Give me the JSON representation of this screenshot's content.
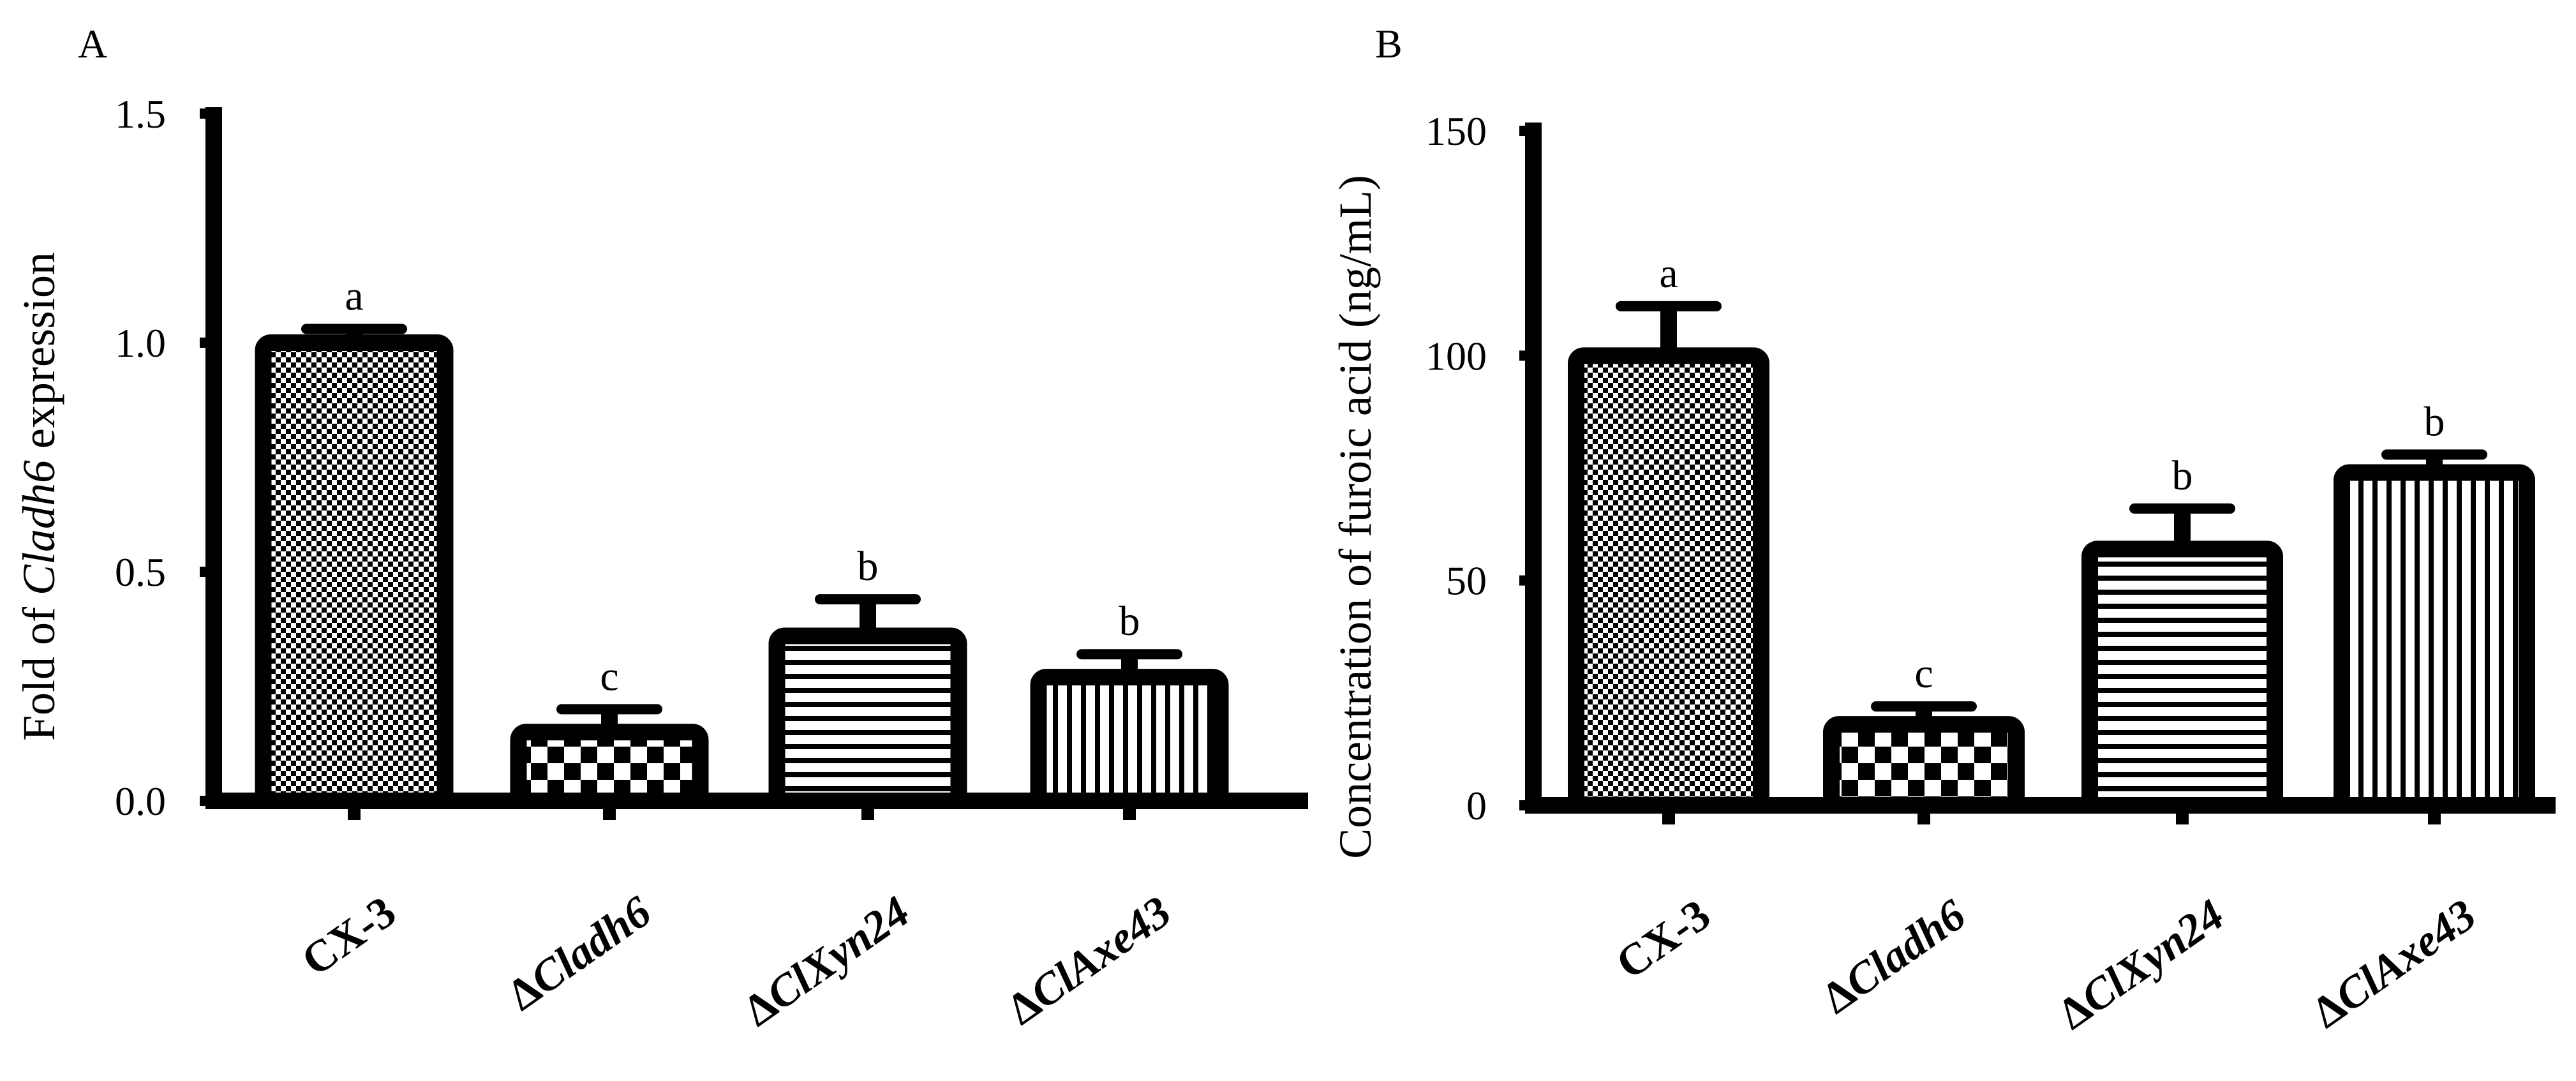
{
  "chart_data": [
    {
      "panel": "A",
      "type": "bar",
      "title": "",
      "ylabel_parts": [
        "Fold of ",
        "Cladh6",
        " expression"
      ],
      "xlabel": "",
      "categories": [
        {
          "prefix": "",
          "name": "CX-3",
          "italic": false
        },
        {
          "prefix": "Δ",
          "name": "Cladh6",
          "italic": true
        },
        {
          "prefix": "Δ",
          "name": "ClXyn24",
          "italic": true
        },
        {
          "prefix": "Δ",
          "name": "ClAxe43",
          "italic": true
        }
      ],
      "values": [
        1.0,
        0.15,
        0.36,
        0.27
      ],
      "errors": [
        0.03,
        0.05,
        0.08,
        0.05
      ],
      "letters": [
        "a",
        "c",
        "b",
        "b"
      ],
      "patterns": [
        "fine-check",
        "coarse-check",
        "hlines",
        "vlines"
      ],
      "ylim": [
        0,
        1.5
      ],
      "yticks": [
        0.0,
        0.5,
        1.0,
        1.5
      ],
      "ytick_labels": [
        "0.0",
        "0.5",
        "1.0",
        "1.5"
      ]
    },
    {
      "panel": "B",
      "type": "bar",
      "title": "",
      "ylabel_parts": [
        "Concentration of furoic acid (ng/mL)"
      ],
      "xlabel": "",
      "categories": [
        {
          "prefix": "",
          "name": "CX-3",
          "italic": false
        },
        {
          "prefix": "Δ",
          "name": "Cladh6",
          "italic": true
        },
        {
          "prefix": "Δ",
          "name": "ClXyn24",
          "italic": true
        },
        {
          "prefix": "Δ",
          "name": "ClAxe43",
          "italic": true
        }
      ],
      "values": [
        100,
        18,
        57,
        74
      ],
      "errors": [
        11,
        4,
        9,
        4
      ],
      "letters": [
        "a",
        "c",
        "b",
        "b"
      ],
      "patterns": [
        "fine-check",
        "coarse-check",
        "hlines",
        "vlines"
      ],
      "ylim": [
        0,
        150
      ],
      "yticks": [
        0,
        50,
        100,
        150
      ],
      "ytick_labels": [
        "0",
        "50",
        "100",
        "150"
      ]
    }
  ]
}
